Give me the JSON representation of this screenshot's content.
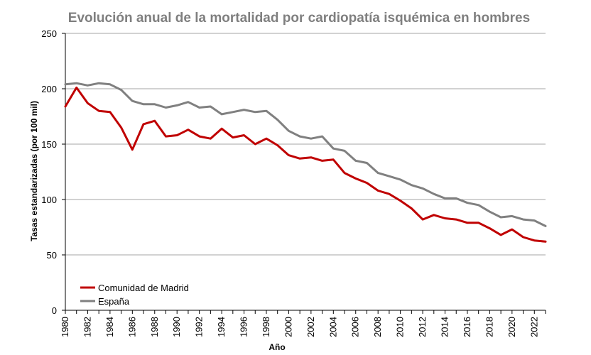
{
  "chart_data": {
    "type": "line",
    "title": "Evolución anual de la mortalidad por cardiopatía isquémica en hombres",
    "xlabel": "Año",
    "ylabel": "Tasas estandarizadas (por 100 mil)",
    "ylim": [
      0,
      250
    ],
    "yticks": [
      "0",
      "50",
      "100",
      "150",
      "200",
      "250"
    ],
    "xlim": [
      1980,
      2023
    ],
    "xticks": [
      "1980",
      "1982",
      "1984",
      "1986",
      "1988",
      "1990",
      "1992",
      "1994",
      "1996",
      "1998",
      "2000",
      "2002",
      "2004",
      "2006",
      "2008",
      "2010",
      "2012",
      "2014",
      "2016",
      "2018",
      "2020",
      "2022"
    ],
    "grid": true,
    "legend_position": "bottom-left",
    "x": [
      1980,
      1981,
      1982,
      1983,
      1984,
      1985,
      1986,
      1987,
      1988,
      1989,
      1990,
      1991,
      1992,
      1993,
      1994,
      1995,
      1996,
      1997,
      1998,
      1999,
      2000,
      2001,
      2002,
      2003,
      2004,
      2005,
      2006,
      2007,
      2008,
      2009,
      2010,
      2011,
      2012,
      2013,
      2014,
      2015,
      2016,
      2017,
      2018,
      2019,
      2020,
      2021,
      2022,
      2023
    ],
    "series": [
      {
        "name": "Comunidad de Madrid",
        "color": "#c00000",
        "values": [
          184,
          201,
          187,
          180,
          179,
          165,
          145,
          168,
          171,
          157,
          158,
          163,
          157,
          155,
          164,
          156,
          158,
          150,
          155,
          149,
          140,
          137,
          138,
          135,
          136,
          124,
          119,
          115,
          108,
          105,
          99,
          92,
          82,
          86,
          83,
          82,
          79,
          79,
          74,
          68,
          73,
          66,
          63,
          62
        ]
      },
      {
        "name": "España",
        "color": "#808080",
        "values": [
          204,
          205,
          203,
          205,
          204,
          199,
          189,
          186,
          186,
          183,
          185,
          188,
          183,
          184,
          177,
          179,
          181,
          179,
          180,
          172,
          162,
          157,
          155,
          157,
          146,
          144,
          135,
          133,
          124,
          121,
          118,
          113,
          110,
          105,
          101,
          101,
          97,
          95,
          89,
          84,
          85,
          82,
          81,
          76
        ]
      }
    ]
  }
}
